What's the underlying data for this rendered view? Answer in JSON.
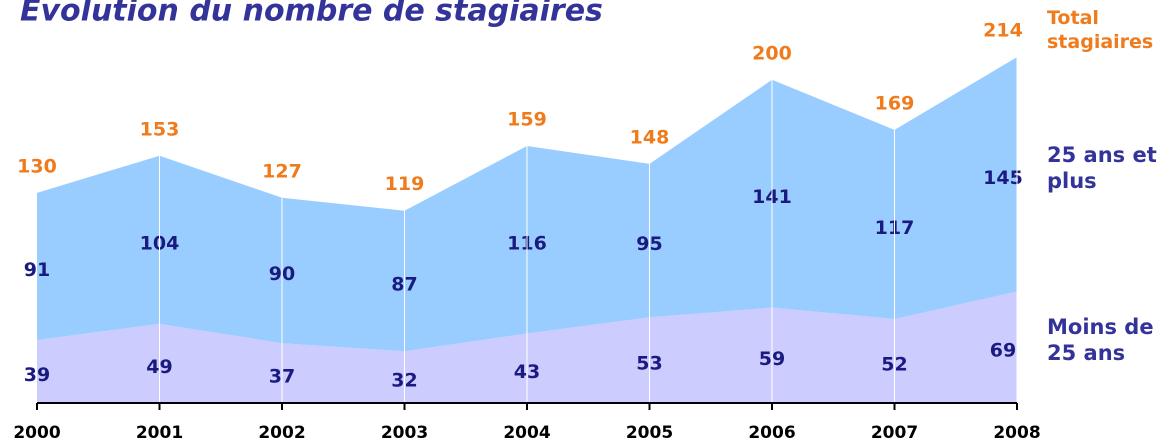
{
  "chart_data": {
    "type": "stacked_area",
    "title": "Evolution du nombre de stagiaires",
    "categories": [
      "2000",
      "2001",
      "2002",
      "2003",
      "2004",
      "2005",
      "2006",
      "2007",
      "2008"
    ],
    "series": [
      {
        "name": "Moins de 25 ans",
        "color": "#ccccff",
        "values": [
          39,
          49,
          37,
          32,
          43,
          53,
          59,
          52,
          69
        ]
      },
      {
        "name": "25 ans et plus",
        "color": "#99ccff",
        "values": [
          91,
          104,
          90,
          87,
          116,
          95,
          141,
          117,
          145
        ]
      }
    ],
    "total_label": "Total stagiaires",
    "totals": [
      130,
      153,
      127,
      119,
      159,
      148,
      200,
      169,
      214
    ],
    "ylim": [
      0,
      250
    ]
  }
}
